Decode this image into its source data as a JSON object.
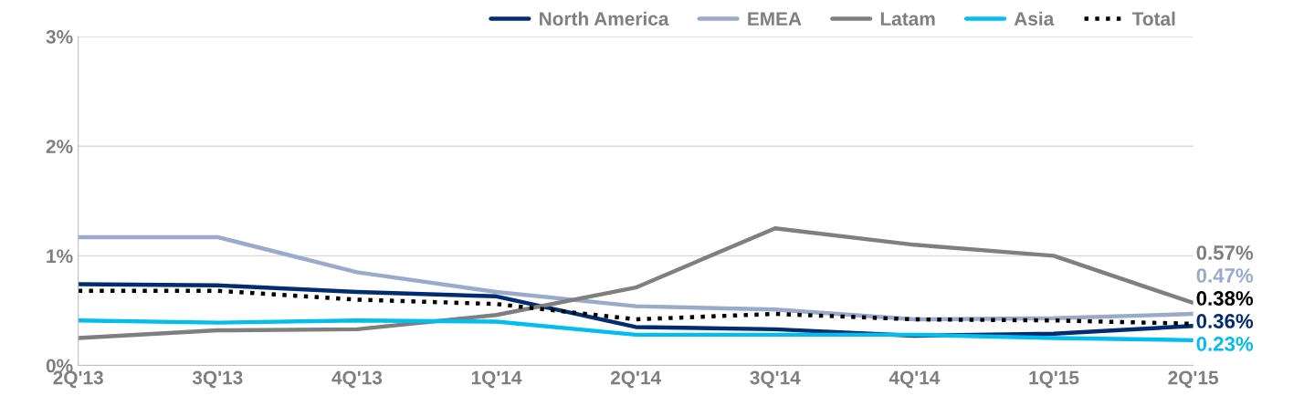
{
  "chart_data": {
    "type": "line",
    "categories": [
      "2Q'13",
      "3Q'13",
      "4Q'13",
      "1Q'14",
      "2Q'14",
      "3Q'14",
      "4Q'14",
      "1Q'15",
      "2Q'15"
    ],
    "series": [
      {
        "name": "North America",
        "color": "#002d72",
        "line_style": "solid",
        "values": [
          0.74,
          0.73,
          0.67,
          0.63,
          0.35,
          0.33,
          0.27,
          0.29,
          0.36
        ],
        "value_labels": [
          null,
          null,
          null,
          null,
          null,
          null,
          null,
          null,
          "0.36%"
        ]
      },
      {
        "name": "EMEA",
        "color": "#99aacb",
        "line_style": "solid",
        "values": [
          1.17,
          1.17,
          0.85,
          0.67,
          0.54,
          0.51,
          0.42,
          0.43,
          0.47
        ],
        "value_labels": [
          null,
          null,
          null,
          null,
          null,
          null,
          null,
          null,
          "0.47%"
        ]
      },
      {
        "name": "Latam",
        "color": "#7f7f7f",
        "line_style": "solid",
        "values": [
          0.25,
          0.32,
          0.33,
          0.46,
          0.71,
          1.25,
          1.1,
          1.0,
          0.57
        ],
        "value_labels": [
          null,
          null,
          null,
          null,
          null,
          null,
          null,
          null,
          "0.57%"
        ]
      },
      {
        "name": "Asia",
        "color": "#00bdf2",
        "line_style": "solid",
        "values": [
          0.41,
          0.39,
          0.41,
          0.4,
          0.28,
          0.28,
          0.28,
          0.25,
          0.23
        ],
        "value_labels": [
          null,
          null,
          null,
          null,
          null,
          null,
          null,
          null,
          "0.23%"
        ]
      },
      {
        "name": "Total",
        "color": "#000000",
        "line_style": "dotted",
        "values": [
          0.68,
          0.68,
          0.6,
          0.56,
          0.42,
          0.47,
          0.42,
          0.41,
          0.38
        ],
        "value_labels": [
          null,
          null,
          null,
          null,
          null,
          null,
          null,
          null,
          "0.38%"
        ]
      }
    ],
    "ylim": [
      0,
      3
    ],
    "yticks": [
      {
        "value": 0,
        "label": "0%"
      },
      {
        "value": 1,
        "label": "1%"
      },
      {
        "value": 2,
        "label": "2%"
      },
      {
        "value": 3,
        "label": "3%"
      }
    ],
    "grid": "y",
    "legend": "top",
    "marker": "none"
  }
}
